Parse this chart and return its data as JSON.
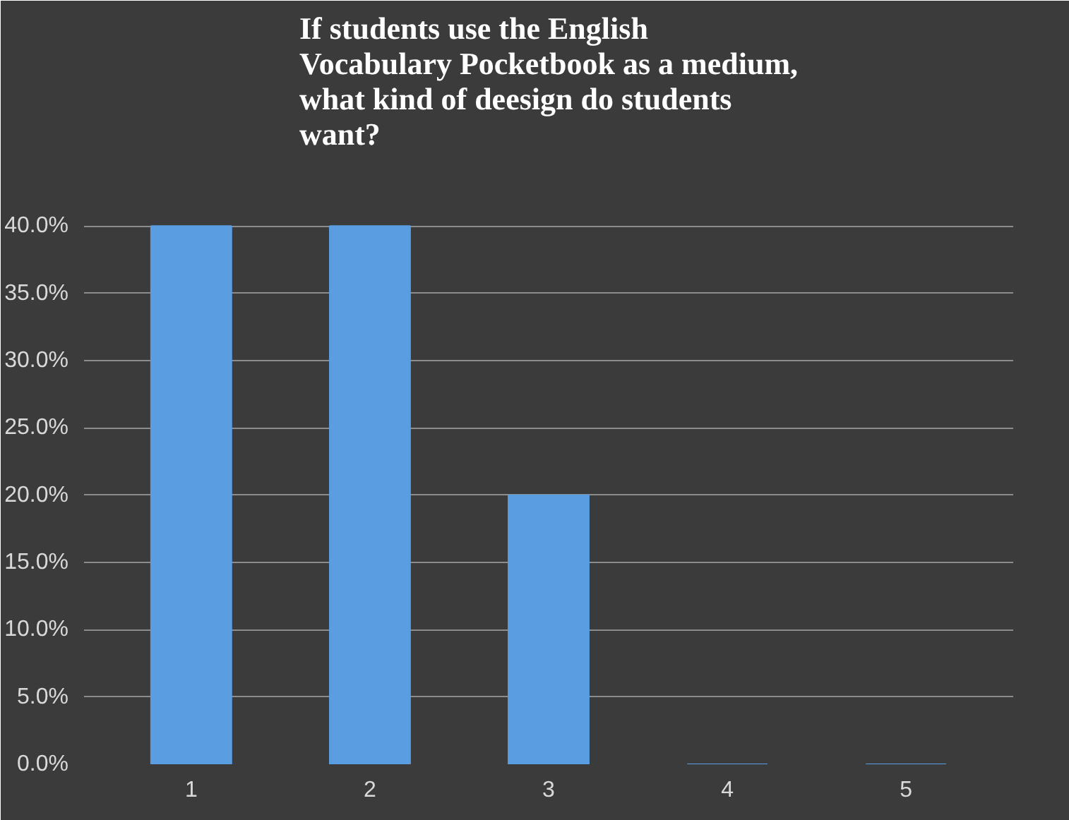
{
  "chart_data": {
    "type": "bar",
    "title": "If students use the English Vocabulary Pocketbook as a medium, what kind of deesign do students want?",
    "categories": [
      "1",
      "2",
      "3",
      "4",
      "5"
    ],
    "values": [
      40,
      40,
      20,
      0,
      0
    ],
    "color": "#5a9de0",
    "ylim": [
      0,
      45
    ],
    "yticks": [
      {
        "value": 0,
        "label": "0.0%"
      },
      {
        "value": 5,
        "label": "5.0%"
      },
      {
        "value": 10,
        "label": "10.0%"
      },
      {
        "value": 15,
        "label": "15.0%"
      },
      {
        "value": 20,
        "label": "20.0%"
      },
      {
        "value": 25,
        "label": "25.0%"
      },
      {
        "value": 30,
        "label": "30.0%"
      },
      {
        "value": 35,
        "label": "35.0%"
      },
      {
        "value": 40,
        "label": "40.0%"
      },
      {
        "value": 45,
        "label": null
      }
    ],
    "grid": "y"
  }
}
